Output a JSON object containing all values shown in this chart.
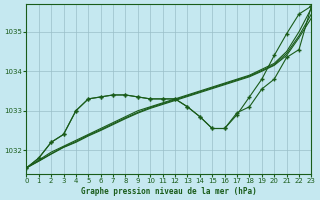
{
  "title": "Graphe pression niveau de la mer (hPa)",
  "background_color": "#c5e8f0",
  "plot_bg_color": "#c5e8f0",
  "grid_color": "#9abfc8",
  "line_color": "#1a5c1a",
  "marker_color": "#1a5c1a",
  "xlim": [
    0,
    23
  ],
  "ylim": [
    1031.4,
    1035.7
  ],
  "yticks": [
    1032,
    1033,
    1034,
    1035
  ],
  "xticks": [
    0,
    1,
    2,
    3,
    4,
    5,
    6,
    7,
    8,
    9,
    10,
    11,
    12,
    13,
    14,
    15,
    16,
    17,
    18,
    19,
    20,
    21,
    22,
    23
  ],
  "smooth_series": [
    [
      1031.55,
      1031.75,
      1031.95,
      1032.1,
      1032.25,
      1032.4,
      1032.55,
      1032.7,
      1032.85,
      1033.0,
      1033.1,
      1033.2,
      1033.3,
      1033.4,
      1033.5,
      1033.6,
      1033.7,
      1033.8,
      1033.9,
      1034.05,
      1034.2,
      1034.5,
      1035.0,
      1035.6
    ],
    [
      1031.55,
      1031.73,
      1031.91,
      1032.08,
      1032.22,
      1032.38,
      1032.52,
      1032.67,
      1032.82,
      1032.96,
      1033.08,
      1033.18,
      1033.28,
      1033.38,
      1033.48,
      1033.58,
      1033.68,
      1033.78,
      1033.88,
      1034.02,
      1034.17,
      1034.45,
      1034.9,
      1035.45
    ],
    [
      1031.55,
      1031.72,
      1031.9,
      1032.07,
      1032.2,
      1032.36,
      1032.5,
      1032.65,
      1032.8,
      1032.94,
      1033.06,
      1033.16,
      1033.26,
      1033.36,
      1033.46,
      1033.56,
      1033.66,
      1033.76,
      1033.86,
      1034.0,
      1034.15,
      1034.4,
      1034.85,
      1035.35
    ]
  ],
  "jagged_series": [
    1031.55,
    1031.8,
    1032.2,
    1032.4,
    1033.0,
    1033.3,
    1033.35,
    1033.4,
    1033.4,
    1033.35,
    1033.3,
    1033.3,
    1033.3,
    1033.1,
    1032.85,
    1032.55,
    1032.55,
    1032.95,
    1033.1,
    1033.55,
    1033.8,
    1034.35,
    1034.55,
    1035.65
  ],
  "jagged2_series": [
    1031.55,
    1031.8,
    1032.2,
    1032.4,
    1033.0,
    1033.3,
    1033.35,
    1033.4,
    1033.4,
    1033.35,
    1033.3,
    1033.3,
    1033.3,
    1033.1,
    1032.85,
    1032.55,
    1032.55,
    1032.9,
    1033.35,
    1033.8,
    1034.4,
    1034.95,
    1035.45,
    1035.65
  ]
}
